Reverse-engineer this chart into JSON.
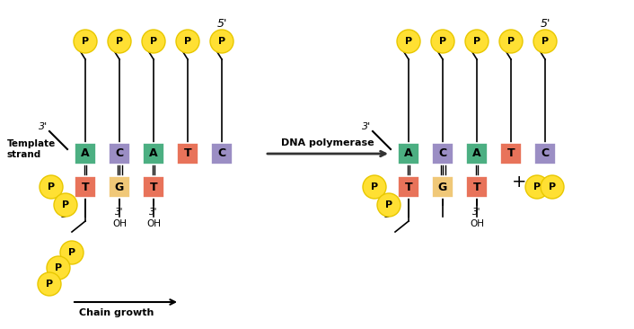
{
  "bg_color": "#ffffff",
  "yellow_color": "#FFE033",
  "yellow_edge": "#E8C800",
  "green_color": "#4CAF82",
  "purple_color": "#9B8EC4",
  "salmon_color": "#E8735A",
  "tan_color": "#F0C878",
  "template_bases_left": [
    "A",
    "C",
    "A",
    "T",
    "C"
  ],
  "template_colors_left": [
    "#4CAF82",
    "#9B8EC4",
    "#4CAF82",
    "#E8735A",
    "#9B8EC4"
  ],
  "new_bases_left": [
    "T",
    "G",
    "T"
  ],
  "new_colors_left": [
    "#E8735A",
    "#F0C878",
    "#E8735A"
  ],
  "template_bases_right": [
    "A",
    "C",
    "A",
    "T",
    "C"
  ],
  "template_colors_right": [
    "#4CAF82",
    "#9B8EC4",
    "#4CAF82",
    "#E8735A",
    "#9B8EC4"
  ],
  "new_bases_right": [
    "T",
    "G",
    "T"
  ],
  "new_colors_right": [
    "#E8735A",
    "#F0C878",
    "#E8735A"
  ],
  "arrow_color": "#333333",
  "text_color": "#000000"
}
